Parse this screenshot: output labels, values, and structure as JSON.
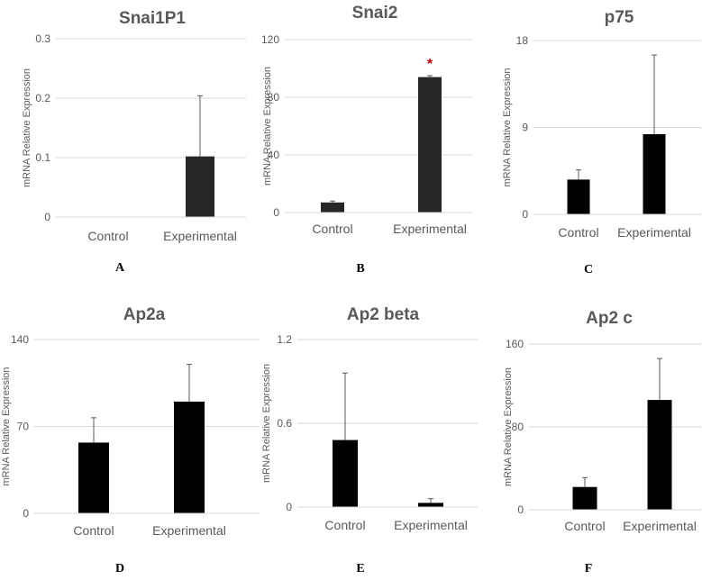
{
  "figure": {
    "bar_color": "#000000",
    "grid_color": "#d9d9d9",
    "text_color": "#595959",
    "error_color": "#595959",
    "significance_color": "#c00000"
  },
  "chart_data": [
    {
      "type": "bar",
      "title": "Snai1P1",
      "panel": "A",
      "ylabel": "mRNA Relative Expression",
      "categories": [
        "Control",
        "Experimental"
      ],
      "values": [
        0,
        0.102
      ],
      "errors": [
        0,
        0.102
      ],
      "ylim": [
        0,
        0.3
      ],
      "yticks": [
        0,
        0.1,
        0.2,
        0.3
      ],
      "yticks_labels": [
        "0",
        "0.1",
        "0.2",
        "0.3"
      ],
      "bar_color": "#262626",
      "significance": [
        "",
        ""
      ]
    },
    {
      "type": "bar",
      "title": "Snai2",
      "panel": "B",
      "ylabel": "mRNA Relative Expression",
      "categories": [
        "Control",
        "Experimental"
      ],
      "values": [
        7,
        94
      ],
      "errors": [
        1,
        1
      ],
      "ylim": [
        0,
        120
      ],
      "yticks": [
        0,
        40,
        80,
        120
      ],
      "yticks_labels": [
        "0",
        "40",
        "80",
        "120"
      ],
      "bar_color": "#262626",
      "significance": [
        "",
        "*"
      ]
    },
    {
      "type": "bar",
      "title": "p75",
      "panel": "C",
      "ylabel": "mRNA Relative Expression",
      "categories": [
        "Control",
        "Experimental"
      ],
      "values": [
        3.6,
        8.3
      ],
      "errors": [
        1.0,
        8.2
      ],
      "ylim": [
        0,
        18
      ],
      "yticks": [
        0,
        9,
        18
      ],
      "yticks_labels": [
        "0",
        "9",
        "18"
      ],
      "bar_color": "#000000",
      "significance": [
        "",
        ""
      ]
    },
    {
      "type": "bar",
      "title": "Ap2a",
      "panel": "D",
      "ylabel": "mRNA Relative Expression",
      "categories": [
        "Control",
        "Experimental"
      ],
      "values": [
        57,
        90
      ],
      "errors": [
        20,
        30
      ],
      "ylim": [
        0,
        140
      ],
      "yticks": [
        0,
        70,
        140
      ],
      "yticks_labels": [
        "0",
        "70",
        "140"
      ],
      "bar_color": "#000000",
      "significance": [
        "",
        ""
      ]
    },
    {
      "type": "bar",
      "title": "Ap2 beta",
      "panel": "E",
      "ylabel": "mRNA Relative Expression",
      "categories": [
        "Control",
        "Experimental"
      ],
      "values": [
        0.48,
        0.03
      ],
      "errors": [
        0.48,
        0.03
      ],
      "ylim": [
        0,
        1.2
      ],
      "yticks": [
        0,
        0.6,
        1.2
      ],
      "yticks_labels": [
        "0",
        "0.6",
        "1.2"
      ],
      "bar_color": "#000000",
      "significance": [
        "",
        ""
      ]
    },
    {
      "type": "bar",
      "title": "Ap2 c",
      "panel": "F",
      "ylabel": "mRNA Relative Expression",
      "categories": [
        "Control",
        "Experimental"
      ],
      "values": [
        22,
        106
      ],
      "errors": [
        9,
        40
      ],
      "ylim": [
        0,
        160
      ],
      "yticks": [
        0,
        80,
        160
      ],
      "yticks_labels": [
        "0",
        "80",
        "160"
      ],
      "bar_color": "#000000",
      "significance": [
        "",
        ""
      ]
    }
  ]
}
